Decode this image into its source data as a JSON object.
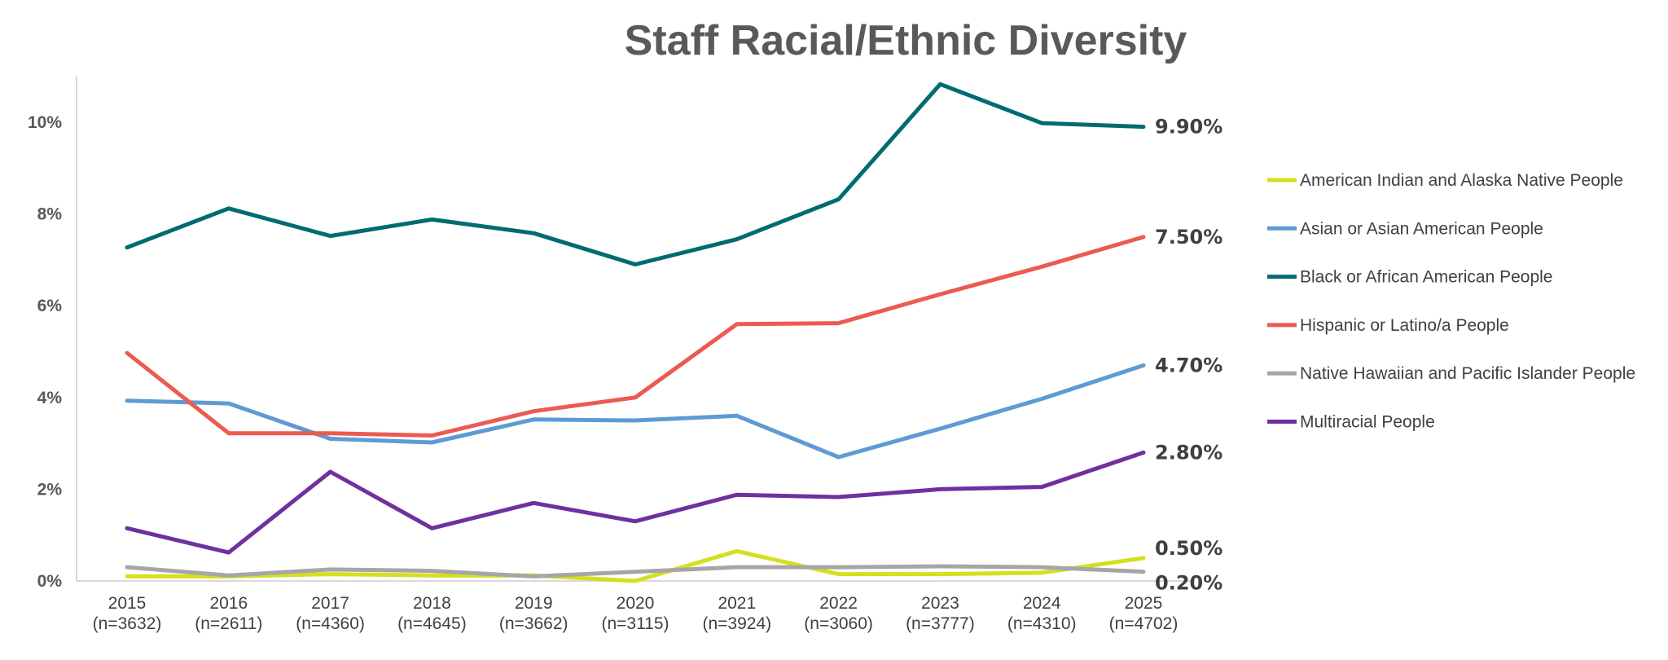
{
  "chart_data": {
    "type": "line",
    "title": "Staff Racial/Ethnic Diversity",
    "categories": [
      "2015",
      "2016",
      "2017",
      "2018",
      "2019",
      "2020",
      "2021",
      "2022",
      "2023",
      "2024",
      "2025"
    ],
    "category_sublabels": [
      "(n=3632)",
      "(n=2611)",
      "(n=4360)",
      "(n=4645)",
      "(n=3662)",
      "(n=3115)",
      "(n=3924)",
      "(n=3060)",
      "(n=3777)",
      "(n=4310)",
      "(n=4702)"
    ],
    "y_ticks": [
      0,
      2,
      4,
      6,
      8,
      10
    ],
    "y_tick_labels": [
      "0%",
      "2%",
      "4%",
      "6%",
      "8%",
      "10%"
    ],
    "ylim": [
      0,
      11
    ],
    "grid": false,
    "legend_position": "right",
    "series": [
      {
        "name": "American Indian and Alaska Native People",
        "color": "#d5df1f",
        "values": [
          0.1,
          0.1,
          0.15,
          0.12,
          0.12,
          0.0,
          0.65,
          0.15,
          0.15,
          0.18,
          0.5
        ],
        "end_label": "0.50%"
      },
      {
        "name": "Asian or Asian American People",
        "color": "#5e9bd4",
        "values": [
          3.93,
          3.87,
          3.1,
          3.02,
          3.52,
          3.5,
          3.6,
          2.7,
          3.32,
          3.97,
          4.7
        ],
        "end_label": "4.70%"
      },
      {
        "name": "Black or African American People",
        "color": "#006b70",
        "values": [
          7.27,
          8.12,
          7.52,
          7.88,
          7.58,
          6.9,
          7.45,
          8.32,
          10.83,
          9.98,
          9.9
        ],
        "end_label": "9.90%"
      },
      {
        "name": "Hispanic or Latino/a People",
        "color": "#ec5a51",
        "values": [
          4.97,
          3.22,
          3.22,
          3.17,
          3.7,
          4.0,
          5.6,
          5.62,
          6.25,
          6.85,
          7.5
        ],
        "end_label": "7.50%"
      },
      {
        "name": "Native Hawaiian and Pacific Islander People",
        "color": "#a6a6a6",
        "values": [
          0.3,
          0.12,
          0.25,
          0.22,
          0.1,
          0.2,
          0.3,
          0.3,
          0.32,
          0.3,
          0.2
        ],
        "end_label": "0.20%"
      },
      {
        "name": "Multiracial People",
        "color": "#70309f",
        "values": [
          1.15,
          0.62,
          2.38,
          1.15,
          1.7,
          1.3,
          1.88,
          1.83,
          2.0,
          2.05,
          2.8
        ],
        "end_label": "2.80%"
      }
    ]
  }
}
